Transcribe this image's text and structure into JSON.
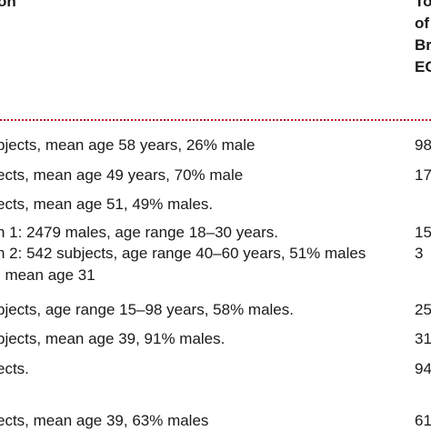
{
  "header": {
    "left": "on",
    "right_lines": [
      "To",
      "of",
      "Br",
      "EC"
    ]
  },
  "rows": [
    {
      "desc": "bjects, mean age 58 years, 26% male",
      "val": "98"
    },
    {
      "desc": "ects, mean age 49 years, 70% male",
      "val": "17"
    },
    {
      "desc": "ects, mean age 51, 49% males.",
      "val": ""
    },
    {
      "desc": "n 1: 2479 males, age range 18–30 years.",
      "val": "15"
    },
    {
      "desc": "n 2: 542 subjects, age range 40–60 years, 51% males",
      "val": "3"
    },
    {
      "desc": ", mean age 31",
      "val": ""
    },
    {
      "desc": "bjects, age range 15–98 years, 58% males.",
      "val": "25"
    },
    {
      "desc": "bjects, mean age 39, 91% males.",
      "val": "31"
    },
    {
      "desc": "ects.",
      "val": "94"
    },
    {
      "desc": "ects, mean age 39, 63% males",
      "val": "61"
    }
  ]
}
